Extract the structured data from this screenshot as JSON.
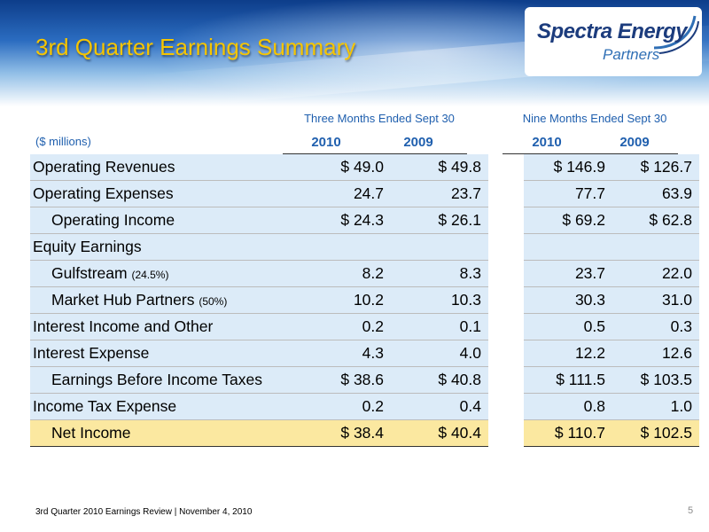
{
  "slide": {
    "title": "3rd Quarter Earnings Summary",
    "logo": {
      "main": "Spectra Energy",
      "sub": "Partners"
    },
    "footer": "3rd Quarter 2010 Earnings Review | November 4, 2010",
    "page_number": "5"
  },
  "colors": {
    "title": "#f6c500",
    "header_text": "#1f5fae",
    "row_band": "#dcebf8",
    "net_income_band": "#fbe8a0"
  },
  "table": {
    "unit_label": "($ millions)",
    "group_headers": [
      "Three Months Ended Sept 30",
      "Nine Months Ended Sept 30"
    ],
    "years": [
      "2010",
      "2009",
      "2010",
      "2009"
    ],
    "rows": [
      {
        "label": "Operating Revenues",
        "note": "",
        "values": [
          "$ 49.0",
          "$ 49.8",
          "$ 146.9",
          "$ 126.7"
        ]
      },
      {
        "label": "Operating Expenses",
        "note": "",
        "values": [
          "24.7",
          "23.7",
          "77.7",
          "63.9"
        ]
      },
      {
        "label": "Operating Income",
        "note": "",
        "values": [
          "$ 24.3",
          "$ 26.1",
          "$ 69.2",
          "$ 62.8"
        ]
      },
      {
        "label": "Equity Earnings",
        "note": "",
        "values": [
          "",
          "",
          "",
          ""
        ]
      },
      {
        "label": "Gulfstream",
        "note": "(24.5%)",
        "values": [
          "8.2",
          "8.3",
          "23.7",
          "22.0"
        ]
      },
      {
        "label": "Market Hub Partners",
        "note": "(50%)",
        "values": [
          "10.2",
          "10.3",
          "30.3",
          "31.0"
        ]
      },
      {
        "label": "Interest Income and Other",
        "note": "",
        "values": [
          "0.2",
          "0.1",
          "0.5",
          "0.3"
        ]
      },
      {
        "label": "Interest Expense",
        "note": "",
        "values": [
          "4.3",
          "4.0",
          "12.2",
          "12.6"
        ]
      },
      {
        "label": "Earnings Before Income Taxes",
        "note": "",
        "values": [
          "$ 38.6",
          "$ 40.8",
          "$ 111.5",
          "$ 103.5"
        ]
      },
      {
        "label": "Income Tax Expense",
        "note": "",
        "values": [
          "0.2",
          "0.4",
          "0.8",
          "1.0"
        ]
      },
      {
        "label": "Net Income",
        "note": "",
        "values": [
          "$ 38.4",
          "$ 40.4",
          "$ 110.7",
          "$ 102.5"
        ]
      }
    ]
  }
}
